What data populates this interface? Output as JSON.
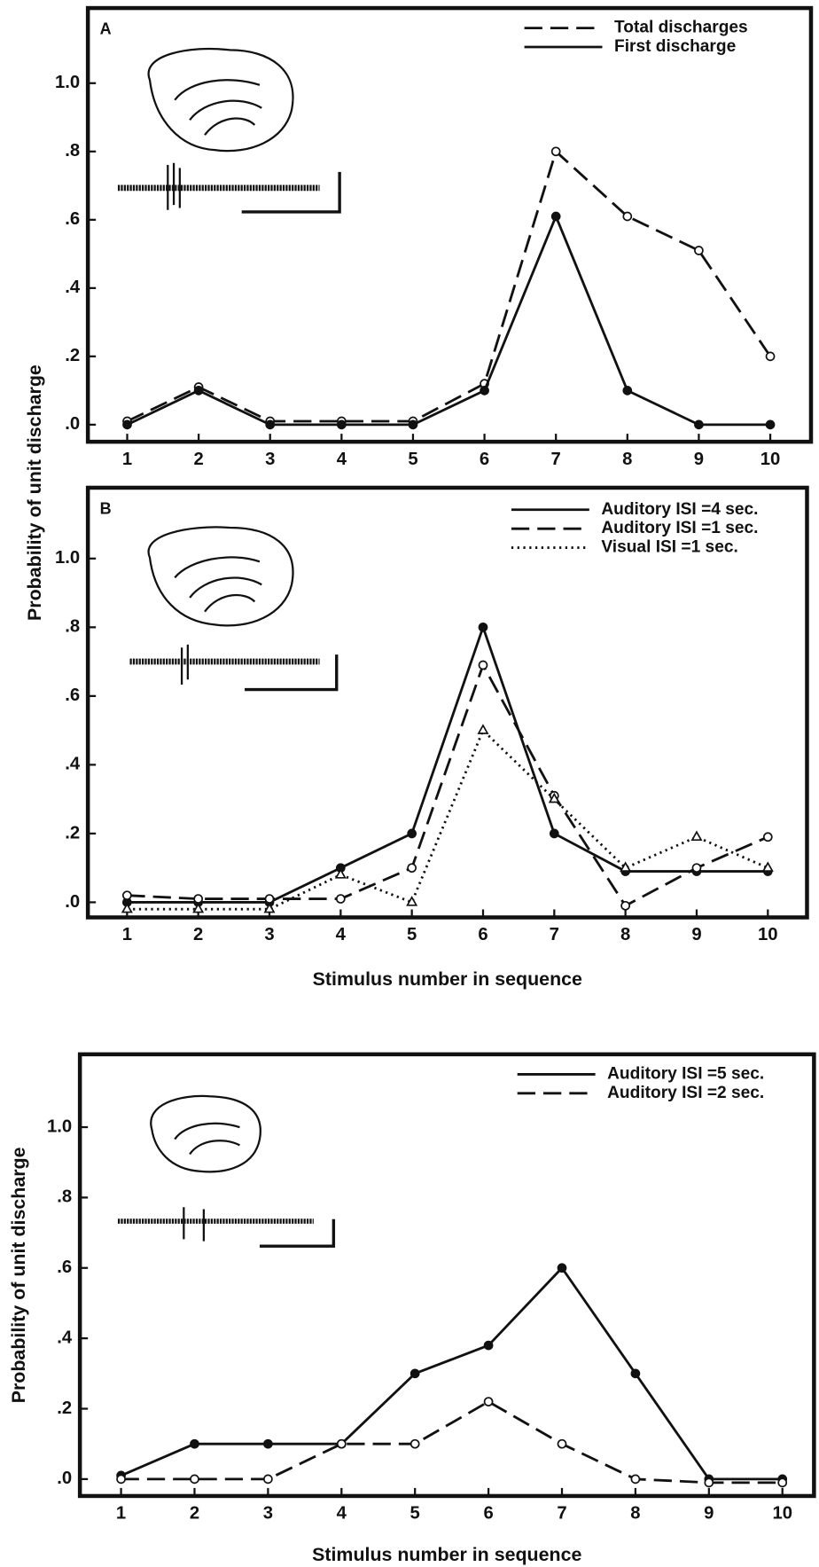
{
  "chart_data": [
    {
      "type": "line",
      "panel_label": "A",
      "ylabel": "Probability of unit discharge",
      "x": [
        1,
        2,
        3,
        4,
        5,
        6,
        7,
        8,
        9,
        10
      ],
      "xlim": [
        0.45,
        10.57
      ],
      "xticks": [
        1,
        2,
        3,
        4,
        5,
        6,
        7,
        8,
        9,
        10
      ],
      "ylim": [
        -0.05,
        1.22
      ],
      "yticks": [
        {
          "value": 0,
          "label": ".0"
        },
        {
          "value": 0.2,
          "label": ".2"
        },
        {
          "value": 0.4,
          "label": ".4"
        },
        {
          "value": 0.6,
          "label": ".6"
        },
        {
          "value": 0.8,
          "label": ".8"
        },
        {
          "value": 1.0,
          "label": "1.0"
        }
      ],
      "legend": "upper right",
      "series": [
        {
          "name": "Total discharges",
          "color": "#111111",
          "style": "dashed",
          "marker": "open",
          "values": [
            0.01,
            0.11,
            0.01,
            0.01,
            0.01,
            0.12,
            0.8,
            0.61,
            0.51,
            0.2
          ]
        },
        {
          "name": "First discharge",
          "color": "#111111",
          "style": "solid",
          "marker": "filled",
          "values": [
            0,
            0.1,
            0,
            0,
            0,
            0.1,
            0.61,
            0.1,
            0,
            0
          ]
        }
      ]
    },
    {
      "type": "line",
      "panel_label": "B",
      "xlabel": "Stimulus number in sequence",
      "x": [
        1,
        2,
        3,
        4,
        5,
        6,
        7,
        8,
        9,
        10
      ],
      "xlim": [
        0.45,
        10.55
      ],
      "xticks": [
        1,
        2,
        3,
        4,
        5,
        6,
        7,
        8,
        9,
        10
      ],
      "ylim": [
        -0.044,
        1.206
      ],
      "yticks": [
        {
          "value": 0,
          "label": ".0"
        },
        {
          "value": 0.2,
          "label": ".2"
        },
        {
          "value": 0.4,
          "label": ".4"
        },
        {
          "value": 0.6,
          "label": ".6"
        },
        {
          "value": 0.8,
          "label": ".8"
        },
        {
          "value": 1.0,
          "label": "1.0"
        }
      ],
      "legend": "upper right",
      "series": [
        {
          "name": "Auditory ISI =4 sec.",
          "color": "#111111",
          "style": "solid",
          "marker": "filled",
          "values": [
            0,
            0,
            0,
            0.1,
            0.2,
            0.8,
            0.2,
            0.09,
            0.09,
            0.09
          ]
        },
        {
          "name": "Auditory ISI =1 sec.",
          "color": "#111111",
          "style": "dashed",
          "marker": "open",
          "values": [
            0.02,
            0.01,
            0.01,
            0.01,
            0.1,
            0.69,
            0.31,
            -0.01,
            0.1,
            0.19
          ]
        },
        {
          "name": "Visual ISI =1 sec.",
          "color": "#111111",
          "style": "dotted",
          "marker": "triangle",
          "values": [
            -0.02,
            -0.02,
            -0.02,
            0.08,
            0,
            0.5,
            0.3,
            0.1,
            0.19,
            0.1
          ]
        }
      ]
    },
    {
      "type": "line",
      "ylabel": "Probability of unit discharge",
      "xlabel": "Stimulus number in sequence",
      "x": [
        1,
        2,
        3,
        4,
        5,
        6,
        7,
        8,
        9,
        10
      ],
      "xlim": [
        0.44,
        10.43
      ],
      "xticks": [
        1,
        2,
        3,
        4,
        5,
        6,
        7,
        8,
        9,
        10
      ],
      "ylim": [
        -0.048,
        1.207
      ],
      "yticks": [
        {
          "value": 0,
          "label": ".0"
        },
        {
          "value": 0.2,
          "label": ".2"
        },
        {
          "value": 0.4,
          "label": ".4"
        },
        {
          "value": 0.6,
          "label": ".6"
        },
        {
          "value": 0.8,
          "label": ".8"
        },
        {
          "value": 1.0,
          "label": "1.0"
        }
      ],
      "legend": "upper right",
      "series": [
        {
          "name": "Auditory ISI =5 sec.",
          "color": "#111111",
          "style": "solid",
          "marker": "filled",
          "values": [
            0.01,
            0.1,
            0.1,
            0.1,
            0.3,
            0.38,
            0.6,
            0.3,
            0,
            0
          ]
        },
        {
          "name": "Auditory ISI =2 sec.",
          "color": "#111111",
          "style": "dashed",
          "marker": "open",
          "values": [
            0,
            0,
            0,
            0.1,
            0.1,
            0.22,
            0.1,
            0,
            -0.01,
            -0.01
          ]
        }
      ]
    }
  ]
}
